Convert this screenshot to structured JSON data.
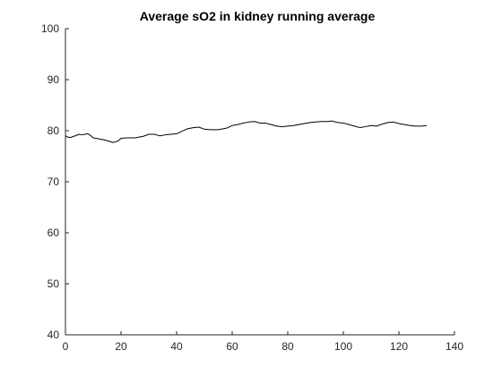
{
  "chart_data": {
    "type": "line",
    "title": "Average sO2 in kidney running average",
    "xlabel": "",
    "ylabel": "",
    "xlim": [
      0,
      140
    ],
    "ylim": [
      40,
      100
    ],
    "x_ticks": [
      0,
      20,
      40,
      60,
      80,
      100,
      120,
      140
    ],
    "y_ticks": [
      40,
      50,
      60,
      70,
      80,
      90,
      100
    ],
    "grid": false,
    "line_color": "#000000",
    "series": [
      {
        "x": [
          0,
          1,
          2,
          3,
          4,
          5,
          6,
          7,
          8,
          9,
          10,
          12,
          14,
          16,
          17,
          18,
          19,
          20,
          22,
          25,
          28,
          30,
          32,
          34,
          36,
          38,
          40,
          42,
          44,
          46,
          48,
          50,
          52,
          55,
          58,
          60,
          62,
          64,
          66,
          68,
          70,
          72,
          74,
          76,
          78,
          80,
          82,
          84,
          86,
          88,
          90,
          92,
          94,
          96,
          98,
          100,
          102,
          104,
          106,
          108,
          110,
          112,
          114,
          116,
          118,
          120,
          122,
          124,
          126,
          128,
          130
        ],
        "values": [
          79.0,
          78.7,
          78.7,
          78.9,
          79.1,
          79.3,
          79.2,
          79.3,
          79.4,
          79.1,
          78.6,
          78.4,
          78.2,
          77.9,
          77.7,
          77.8,
          78.0,
          78.5,
          78.6,
          78.6,
          78.9,
          79.3,
          79.3,
          79.0,
          79.2,
          79.3,
          79.4,
          79.9,
          80.4,
          80.6,
          80.7,
          80.3,
          80.2,
          80.2,
          80.5,
          81.0,
          81.2,
          81.5,
          81.7,
          81.8,
          81.5,
          81.5,
          81.2,
          80.9,
          80.8,
          80.9,
          81.0,
          81.2,
          81.4,
          81.6,
          81.7,
          81.8,
          81.8,
          81.9,
          81.6,
          81.5,
          81.2,
          80.9,
          80.6,
          80.8,
          81.0,
          80.9,
          81.3,
          81.6,
          81.7,
          81.4,
          81.2,
          81.0,
          80.9,
          80.9,
          81.0
        ]
      }
    ]
  }
}
